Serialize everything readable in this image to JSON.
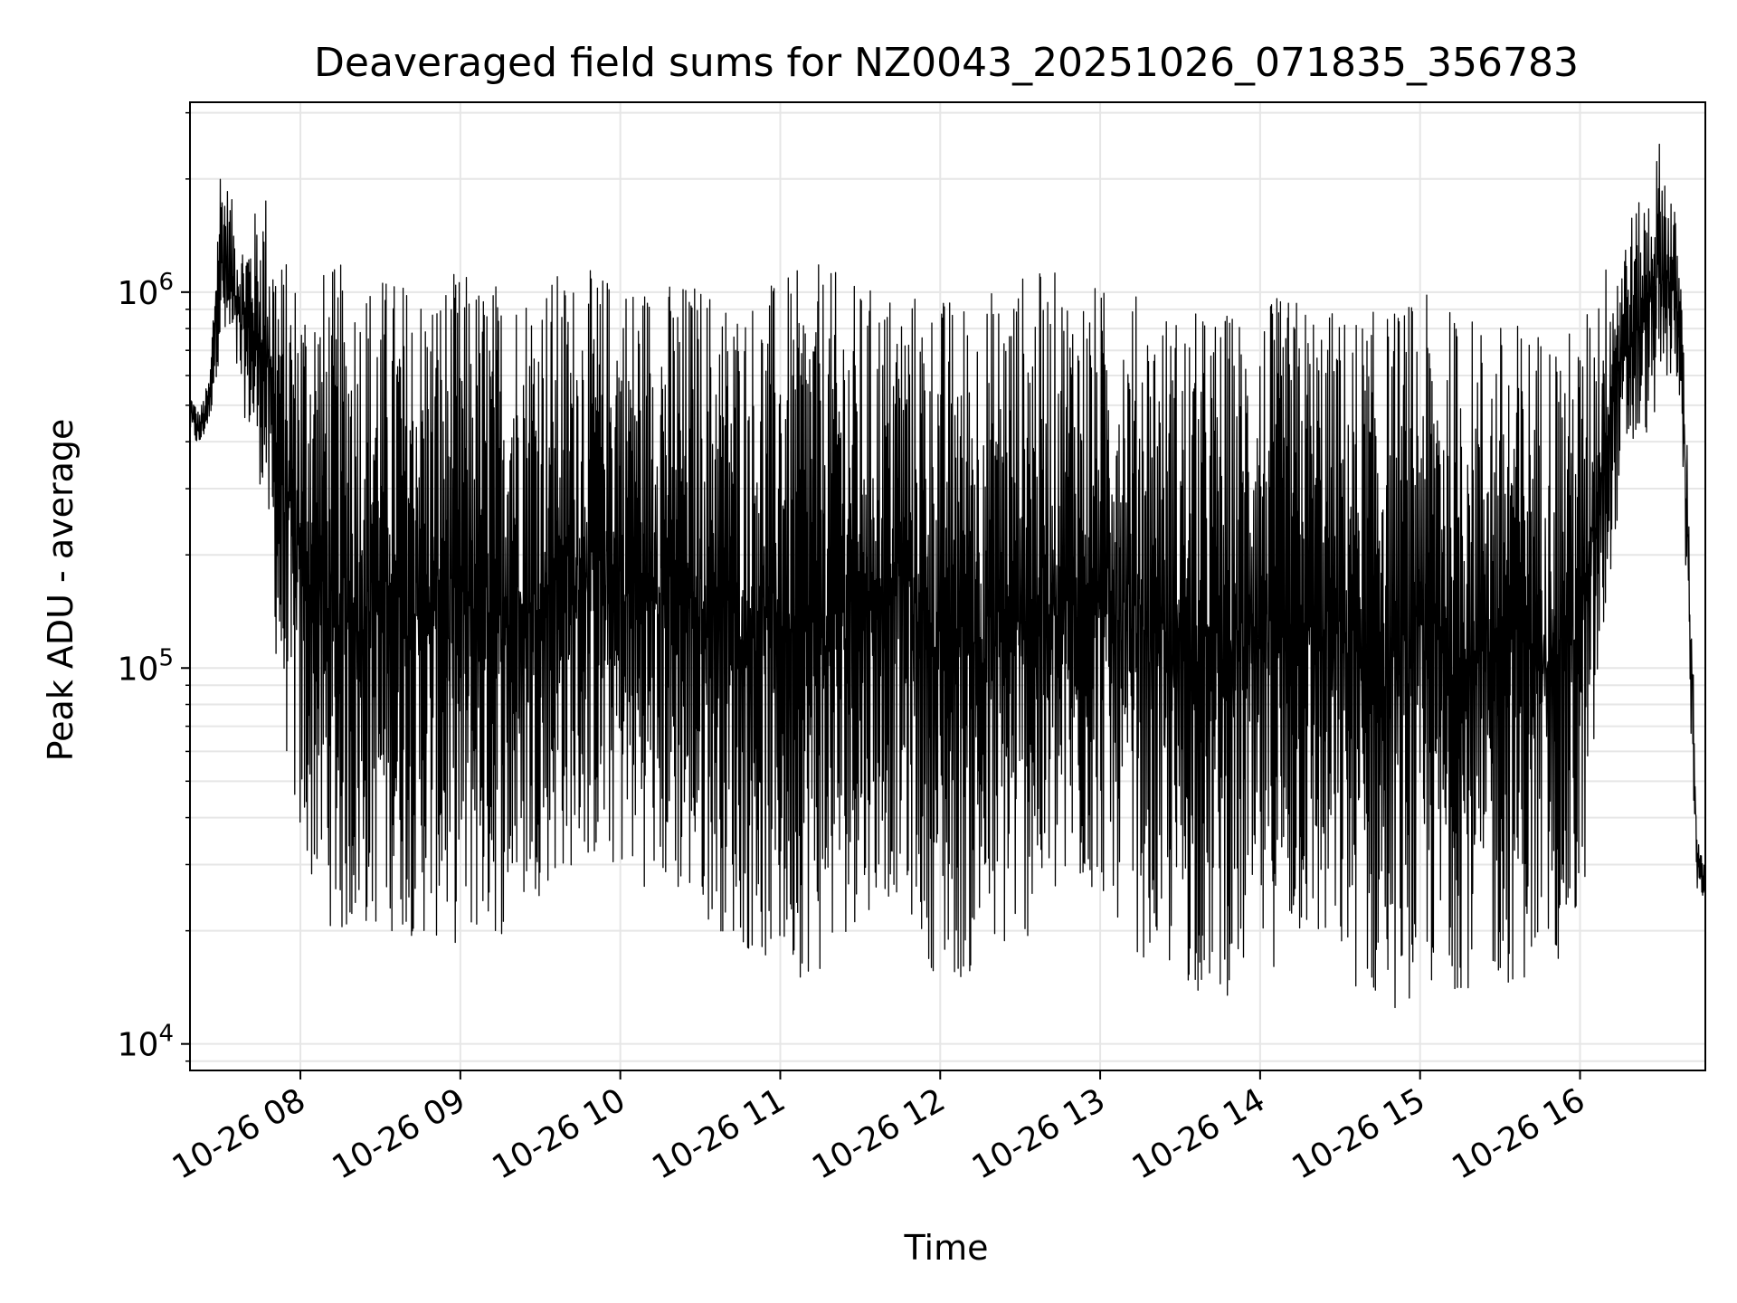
{
  "chart_data": {
    "type": "line",
    "title": "Deaveraged field sums for NZ0043_20251026_071835_356783",
    "xlabel": "Time",
    "ylabel": "Peak ADU - average",
    "yscale": "log",
    "ylim": [
      8500,
      3200000
    ],
    "xlim": [
      "2025-10-26T07:18:35",
      "2025-10-26T16:47:00"
    ],
    "grid": true,
    "line_color": "#000000",
    "x_ticks": [
      {
        "value": "2025-10-26T08:00",
        "label": "10-26 08"
      },
      {
        "value": "2025-10-26T09:00",
        "label": "10-26 09"
      },
      {
        "value": "2025-10-26T10:00",
        "label": "10-26 10"
      },
      {
        "value": "2025-10-26T11:00",
        "label": "10-26 11"
      },
      {
        "value": "2025-10-26T12:00",
        "label": "10-26 12"
      },
      {
        "value": "2025-10-26T13:00",
        "label": "10-26 13"
      },
      {
        "value": "2025-10-26T14:00",
        "label": "10-26 14"
      },
      {
        "value": "2025-10-26T15:00",
        "label": "10-26 15"
      },
      {
        "value": "2025-10-26T16:00",
        "label": "10-26 16"
      }
    ],
    "y_ticks": [
      {
        "value": 10000,
        "base": "10",
        "exp": "4"
      },
      {
        "value": 100000,
        "base": "10",
        "exp": "5"
      },
      {
        "value": 1000000,
        "base": "10",
        "exp": "6"
      }
    ],
    "series": [
      {
        "x": [
          "2025-10-26T07:18:35",
          "2025-10-26T07:22:00",
          "2025-10-26T07:26:00",
          "2025-10-26T07:30:00",
          "2025-10-26T07:34:00",
          "2025-10-26T07:38:00",
          "2025-10-26T07:42:00",
          "2025-10-26T07:47:00",
          "2025-10-26T07:52:00",
          "2025-10-26T07:56:00",
          "2025-10-26T08:00:00",
          "2025-10-26T08:15:00",
          "2025-10-26T08:30:00",
          "2025-10-26T08:45:00",
          "2025-10-26T09:00:00",
          "2025-10-26T09:15:00",
          "2025-10-26T09:30:00",
          "2025-10-26T09:45:00",
          "2025-10-26T10:00:00",
          "2025-10-26T10:15:00",
          "2025-10-26T10:30:00",
          "2025-10-26T10:45:00",
          "2025-10-26T11:00:00",
          "2025-10-26T11:15:00",
          "2025-10-26T11:30:00",
          "2025-10-26T11:45:00",
          "2025-10-26T12:00:00",
          "2025-10-26T12:15:00",
          "2025-10-26T12:30:00",
          "2025-10-26T12:45:00",
          "2025-10-26T13:00:00",
          "2025-10-26T13:15:00",
          "2025-10-26T13:30:00",
          "2025-10-26T13:45:00",
          "2025-10-26T14:00:00",
          "2025-10-26T14:15:00",
          "2025-10-26T14:30:00",
          "2025-10-26T14:45:00",
          "2025-10-26T15:00:00",
          "2025-10-26T15:15:00",
          "2025-10-26T15:30:00",
          "2025-10-26T15:45:00",
          "2025-10-26T16:00:00",
          "2025-10-26T16:06:00",
          "2025-10-26T16:12:00",
          "2025-10-26T16:18:00",
          "2025-10-26T16:24:00",
          "2025-10-26T16:30:00",
          "2025-10-26T16:35:00",
          "2025-10-26T16:38:00",
          "2025-10-26T16:41:00",
          "2025-10-26T16:44:00",
          "2025-10-26T16:47:00"
        ],
        "upper": [
          550000,
          480000,
          600000,
          2300000,
          1800000,
          1400000,
          1600000,
          1900000,
          1300000,
          1200000,
          1150000,
          1200000,
          1150000,
          1100000,
          1150000,
          1100000,
          1150000,
          1150000,
          1150000,
          1100000,
          1100000,
          1000000,
          1100000,
          1200000,
          1050000,
          1050000,
          1000000,
          1000000,
          1150000,
          1150000,
          1050000,
          1000000,
          900000,
          900000,
          950000,
          1000000,
          900000,
          900000,
          1000000,
          900000,
          850000,
          850000,
          800000,
          1100000,
          1300000,
          1600000,
          1800000,
          2600000,
          1800000,
          1100000,
          280000,
          35000,
          30000
        ],
        "lower": [
          420000,
          380000,
          450000,
          700000,
          650000,
          500000,
          380000,
          260000,
          80000,
          50000,
          30000,
          18000,
          20000,
          19000,
          18000,
          19000,
          25000,
          30000,
          28000,
          25000,
          22000,
          18000,
          15000,
          15000,
          22000,
          25000,
          14000,
          15000,
          18000,
          22000,
          25000,
          17000,
          14000,
          13000,
          15000,
          18000,
          15000,
          12000,
          13000,
          14000,
          14000,
          15000,
          18000,
          60000,
          200000,
          350000,
          400000,
          500000,
          600000,
          500000,
          80000,
          25000,
          24000
        ]
      }
    ]
  }
}
